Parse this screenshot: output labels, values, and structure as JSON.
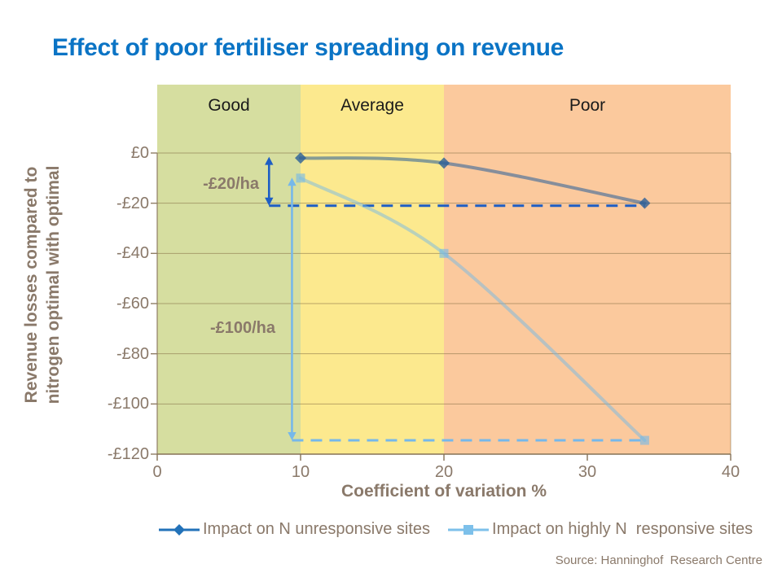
{
  "page": {
    "title": "Effect of poor fertiliser spreading on revenue",
    "source": "Source: Hanninghof  Research Centre"
  },
  "colors": {
    "title_blue": "#0b74c5",
    "text_brown": "#8a796a",
    "grid": "rgba(130,108,66,0.55)",
    "axis": "#8f7d64",
    "bottom_axis": "#857257",
    "annotation_dark": "#1e5ec4",
    "annotation_light": "#76b8ea"
  },
  "chart_data": {
    "type": "line",
    "title": "Effect of poor fertiliser spreading on revenue",
    "x_axis": {
      "title": "Coefficient of variation %",
      "range": [
        0,
        40
      ],
      "ticks": [
        {
          "label": "0",
          "value": 0
        },
        {
          "label": "10",
          "value": 10
        },
        {
          "label": "20",
          "value": 20
        },
        {
          "label": "30",
          "value": 30
        },
        {
          "label": "40",
          "value": 40
        }
      ]
    },
    "y_axis": {
      "title_lines": [
        "Revenue losses compared to",
        "nitrogen optimal with optimal"
      ],
      "range": [
        -120,
        0
      ],
      "ticks": [
        {
          "label": "£0",
          "value": 0
        },
        {
          "label": "-£20",
          "value": -20
        },
        {
          "label": "-£40",
          "value": -40
        },
        {
          "label": "-£60",
          "value": -60
        },
        {
          "label": "-£80",
          "value": -80
        },
        {
          "label": "-£100",
          "value": -100
        },
        {
          "label": "-£120",
          "value": -120
        }
      ]
    },
    "zones": [
      {
        "label": "Good",
        "from": 0,
        "to": 10,
        "color": "#d6dea0"
      },
      {
        "label": "Average",
        "from": 10,
        "to": 20,
        "color": "#fce98e"
      },
      {
        "label": "Poor",
        "from": 20,
        "to": 40,
        "color": "#fbc99d"
      }
    ],
    "series": [
      {
        "name": "Impact on N unresponsive sites",
        "legend_color": "#2272b9",
        "line_rgba": "rgba(38,92,153,0.55)",
        "marker_rgba": "rgba(38,92,153,0.78)",
        "marker": "diamond",
        "points": [
          [
            10,
            -2
          ],
          [
            20,
            -4
          ],
          [
            34,
            -20
          ]
        ]
      },
      {
        "name": "Impact on highly N  responsive sites",
        "legend_color": "#7dc0ea",
        "line_rgba": "rgba(118,185,230,0.5)",
        "marker_rgba": "rgba(118,185,230,0.62)",
        "marker": "square",
        "points": [
          [
            10,
            -10
          ],
          [
            20,
            -40
          ],
          [
            34,
            -114.5
          ]
        ]
      }
    ],
    "annotations": [
      {
        "type": "vline_arrow",
        "color": "dark",
        "x": 7.8,
        "y_from": -1.5,
        "y_to": -21,
        "label": "-£20/ha"
      },
      {
        "type": "hline_dashed",
        "color": "dark",
        "y": -21,
        "x_from": 7.8,
        "x_to": 34
      },
      {
        "type": "vline_arrow",
        "color": "light",
        "x": 9.4,
        "y_from": -9.8,
        "y_to": -114.5,
        "label": "-£100/ha"
      },
      {
        "type": "hline_dashed",
        "color": "light",
        "y": -114.5,
        "x_from": 9.4,
        "x_to": 34
      }
    ]
  }
}
